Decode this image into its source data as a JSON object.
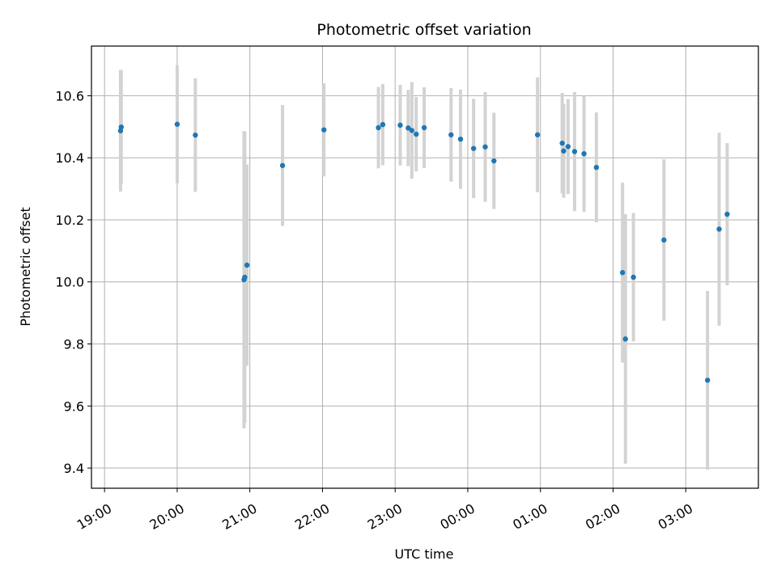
{
  "chart_data": {
    "type": "scatter",
    "title": "Photometric offset variation",
    "xlabel": "UTC time",
    "ylabel": "Photometric offset",
    "x_axis_type": "time",
    "x_tick_labels": [
      "19:00",
      "20:00",
      "21:00",
      "22:00",
      "23:00",
      "00:00",
      "01:00",
      "02:00",
      "03:00"
    ],
    "x_ticks_hours": [
      19,
      20,
      21,
      22,
      23,
      24,
      25,
      26,
      27
    ],
    "xlim_hours": [
      18.82,
      28.0
    ],
    "y_ticks": [
      9.4,
      9.6,
      9.8,
      10.0,
      10.2,
      10.4,
      10.6
    ],
    "ylim": [
      9.335,
      10.76
    ],
    "grid": true,
    "colors": {
      "point": "#1f77b4",
      "errorbar": "#d3d3d3",
      "grid": "#b0b0b0"
    },
    "series": [
      {
        "points": [
          {
            "x": 19.22,
            "y": 10.487,
            "err": 0.196
          },
          {
            "x": 19.23,
            "y": 10.499,
            "err": 0.184
          },
          {
            "x": 20.0,
            "y": 10.508,
            "err": 0.19
          },
          {
            "x": 20.25,
            "y": 10.473,
            "err": 0.183
          },
          {
            "x": 20.92,
            "y": 10.007,
            "err": 0.479
          },
          {
            "x": 20.93,
            "y": 10.015,
            "err": 0.469
          },
          {
            "x": 20.96,
            "y": 10.054,
            "err": 0.324
          },
          {
            "x": 21.45,
            "y": 10.375,
            "err": 0.195
          },
          {
            "x": 22.02,
            "y": 10.49,
            "err": 0.15
          },
          {
            "x": 22.77,
            "y": 10.497,
            "err": 0.131
          },
          {
            "x": 22.83,
            "y": 10.507,
            "err": 0.131
          },
          {
            "x": 23.07,
            "y": 10.505,
            "err": 0.13
          },
          {
            "x": 23.18,
            "y": 10.496,
            "err": 0.123
          },
          {
            "x": 23.23,
            "y": 10.488,
            "err": 0.156
          },
          {
            "x": 23.29,
            "y": 10.476,
            "err": 0.12
          },
          {
            "x": 23.4,
            "y": 10.497,
            "err": 0.13
          },
          {
            "x": 23.77,
            "y": 10.474,
            "err": 0.151
          },
          {
            "x": 23.9,
            "y": 10.46,
            "err": 0.16
          },
          {
            "x": 24.08,
            "y": 10.43,
            "err": 0.16
          },
          {
            "x": 24.24,
            "y": 10.435,
            "err": 0.177
          },
          {
            "x": 24.36,
            "y": 10.39,
            "err": 0.155
          },
          {
            "x": 24.96,
            "y": 10.474,
            "err": 0.185
          },
          {
            "x": 25.3,
            "y": 10.447,
            "err": 0.162
          },
          {
            "x": 25.32,
            "y": 10.422,
            "err": 0.151
          },
          {
            "x": 25.38,
            "y": 10.436,
            "err": 0.153
          },
          {
            "x": 25.47,
            "y": 10.42,
            "err": 0.192
          },
          {
            "x": 25.6,
            "y": 10.413,
            "err": 0.187
          },
          {
            "x": 25.77,
            "y": 10.369,
            "err": 0.177
          },
          {
            "x": 26.13,
            "y": 10.03,
            "err": 0.29
          },
          {
            "x": 26.17,
            "y": 9.816,
            "err": 0.402
          },
          {
            "x": 26.28,
            "y": 10.015,
            "err": 0.207
          },
          {
            "x": 26.7,
            "y": 10.135,
            "err": 0.26
          },
          {
            "x": 27.3,
            "y": 9.683,
            "err": 0.288
          },
          {
            "x": 27.46,
            "y": 10.17,
            "err": 0.311
          },
          {
            "x": 27.57,
            "y": 10.218,
            "err": 0.229
          }
        ]
      }
    ]
  }
}
